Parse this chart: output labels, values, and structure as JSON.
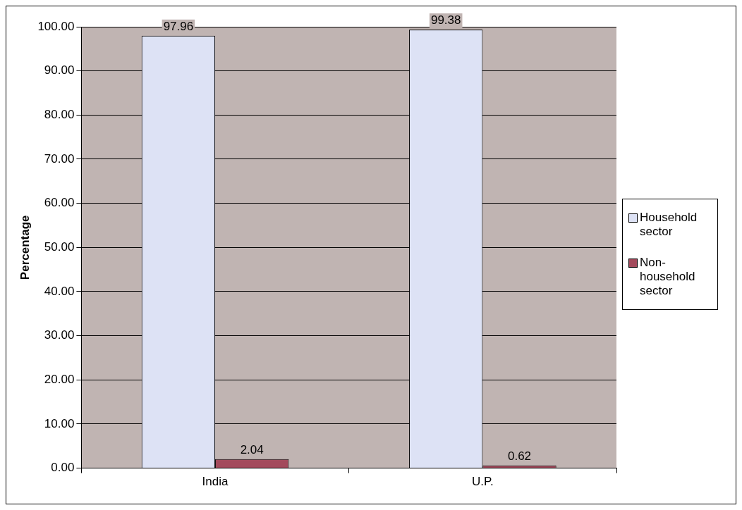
{
  "chart_data": {
    "type": "bar",
    "ylabel": "Percentage",
    "categories": [
      "India",
      "U.P."
    ],
    "series": [
      {
        "name": "Household sector",
        "color": "#dde2f5",
        "values": [
          97.96,
          99.38
        ]
      },
      {
        "name": "Non-household sector",
        "color": "#a34a5c",
        "values": [
          2.04,
          0.62
        ]
      }
    ],
    "ylim": [
      0,
      100
    ],
    "yticks": [
      {
        "value": 0,
        "label": "0.00"
      },
      {
        "value": 10,
        "label": "10.00"
      },
      {
        "value": 20,
        "label": "20.00"
      },
      {
        "value": 30,
        "label": "30.00"
      },
      {
        "value": 40,
        "label": "40.00"
      },
      {
        "value": 50,
        "label": "50.00"
      },
      {
        "value": 60,
        "label": "60.00"
      },
      {
        "value": 70,
        "label": "70.00"
      },
      {
        "value": 80,
        "label": "80.00"
      },
      {
        "value": 90,
        "label": "90.00"
      },
      {
        "value": 100,
        "label": "100.00"
      }
    ],
    "grid": "y",
    "legend": "right",
    "data_labels": true
  }
}
